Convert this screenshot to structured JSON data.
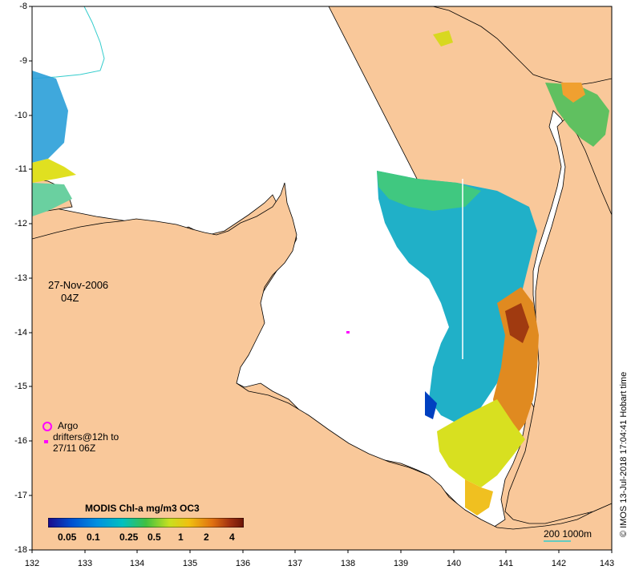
{
  "map": {
    "lat_ticks": [
      "-8",
      "-9",
      "-10",
      "-11",
      "-12",
      "-13",
      "-14",
      "-15",
      "-16",
      "-17",
      "-18"
    ],
    "lon_ticks": [
      "132",
      "133",
      "134",
      "135",
      "136",
      "137",
      "138",
      "139",
      "140",
      "141",
      "142",
      "143"
    ],
    "colors": {
      "land": "#f9c89a",
      "sea_nodata": "#ffffff",
      "river": "#33cccc",
      "coast": "#000000",
      "drifter": "#ff00ff"
    }
  },
  "date": {
    "day": "27-Nov-2006",
    "hour": "04Z"
  },
  "legend": {
    "argo": "Argo",
    "drifters_line1": "drifters@12h to",
    "drifters_line2": "27/11 06Z"
  },
  "colorbar": {
    "title": "MODIS Chl-a mg/m3 OC3",
    "ticks": [
      "0.05",
      "0.1",
      "0.25",
      "0.5",
      "1",
      "2",
      "4"
    ],
    "colors": [
      "#1a0a8c",
      "#0050d0",
      "#0090e0",
      "#00c0c0",
      "#40c040",
      "#c8e020",
      "#f0c010",
      "#e07010",
      "#a03010",
      "#6a1408"
    ]
  },
  "scale": {
    "label": "200  1000m"
  },
  "credit": "© IMOS 13-Jul-2018 17:04:41 Hobart time"
}
